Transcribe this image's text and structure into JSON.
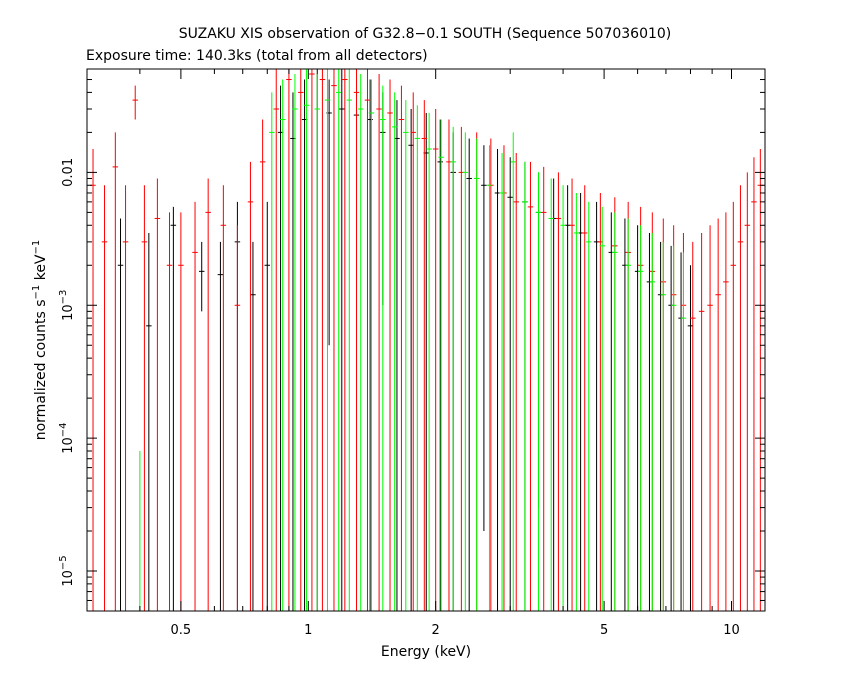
{
  "chart_data": {
    "type": "scatter",
    "title": "SUZAKU XIS observation of G32.8−0.1 SOUTH (Sequence 507036010)",
    "subtitle": "Exposure time: 140.3ks (total from all detectors)",
    "xlabel": "Energy (keV)",
    "ylabel": "normalized counts s",
    "ylabel_sup1": "−1",
    "ylabel_unit": " keV",
    "ylabel_sup2": "−1",
    "x_scale": "log",
    "y_scale": "log",
    "xlim": [
      0.3,
      12
    ],
    "ylim": [
      5e-06,
      0.06
    ],
    "x_ticks": [
      {
        "value": 0.5,
        "label": "0.5"
      },
      {
        "value": 1,
        "label": "1"
      },
      {
        "value": 2,
        "label": "2"
      },
      {
        "value": 5,
        "label": "5"
      },
      {
        "value": 10,
        "label": "10"
      }
    ],
    "y_ticks": [
      {
        "value": 1e-05,
        "label": "10",
        "exp": "−5"
      },
      {
        "value": 0.0001,
        "label": "10",
        "exp": "−4"
      },
      {
        "value": 0.001,
        "label": "10",
        "exp": "−3"
      },
      {
        "value": 0.01,
        "label": "0.01",
        "exp": ""
      }
    ],
    "grid": false,
    "series": [
      {
        "color": "#000000",
        "x": [
          0.36,
          0.42,
          0.48,
          0.56,
          0.62,
          0.68,
          0.74,
          0.8,
          0.86,
          0.92,
          0.98,
          1.05,
          1.12,
          1.2,
          1.3,
          1.4,
          1.5,
          1.62,
          1.75,
          1.9,
          2.05,
          2.2,
          2.4,
          2.6,
          2.8,
          3.0,
          3.25,
          3.5,
          3.8,
          4.1,
          4.4,
          4.8,
          5.2,
          5.6,
          6.0,
          6.4,
          6.8,
          7.2,
          7.6,
          8.0
        ],
        "y": [
          0.002,
          0.0007,
          0.004,
          0.0018,
          0.0017,
          0.003,
          0.0012,
          0.002,
          0.02,
          0.018,
          0.025,
          0.03,
          0.028,
          0.03,
          0.027,
          0.025,
          0.02,
          0.018,
          0.016,
          0.014,
          0.012,
          0.01,
          0.009,
          0.008,
          0.007,
          0.0065,
          0.006,
          0.005,
          0.0045,
          0.004,
          0.0035,
          0.003,
          0.0025,
          0.002,
          0.0018,
          0.0015,
          0.0012,
          0.001,
          0.0008,
          0.0007
        ],
        "y_low": [
          5e-06,
          5e-06,
          5e-06,
          0.0009,
          5e-06,
          5e-06,
          5e-06,
          5e-06,
          5e-06,
          5e-06,
          5e-06,
          5e-06,
          0.0005,
          5e-06,
          5e-06,
          5e-06,
          0.001,
          5e-06,
          5e-06,
          5e-06,
          5e-06,
          5e-06,
          5e-06,
          2e-05,
          5e-06,
          5e-06,
          5e-06,
          3e-05,
          5e-06,
          5e-06,
          5e-06,
          5e-06,
          5e-06,
          5e-06,
          5e-06,
          5e-06,
          5e-06,
          5e-06,
          5e-06,
          5e-06
        ],
        "y_high": [
          0.0045,
          0.0035,
          0.0055,
          0.003,
          0.003,
          0.006,
          0.003,
          0.006,
          0.045,
          0.04,
          0.05,
          0.06,
          0.05,
          0.06,
          0.05,
          0.05,
          0.04,
          0.035,
          0.03,
          0.028,
          0.025,
          0.02,
          0.018,
          0.016,
          0.015,
          0.013,
          0.012,
          0.01,
          0.009,
          0.008,
          0.007,
          0.006,
          0.005,
          0.0045,
          0.004,
          0.0035,
          0.003,
          0.0028,
          0.0025,
          0.002
        ]
      },
      {
        "color": "#ff0000",
        "x": [
          0.31,
          0.33,
          0.35,
          0.37,
          0.39,
          0.41,
          0.44,
          0.47,
          0.5,
          0.54,
          0.58,
          0.63,
          0.68,
          0.73,
          0.78,
          0.84,
          0.9,
          0.96,
          1.02,
          1.08,
          1.15,
          1.22,
          1.3,
          1.38,
          1.47,
          1.56,
          1.66,
          1.77,
          1.88,
          2.0,
          2.15,
          2.3,
          2.5,
          2.7,
          2.9,
          3.1,
          3.35,
          3.6,
          3.9,
          4.2,
          4.5,
          4.9,
          5.3,
          5.7,
          6.1,
          6.5,
          6.9,
          7.3,
          7.7,
          8.1,
          8.5,
          8.9,
          9.3,
          9.7,
          10.1,
          10.5,
          10.9,
          11.3,
          11.7
        ],
        "y": [
          0.008,
          0.003,
          0.011,
          0.003,
          0.035,
          0.003,
          0.0045,
          0.002,
          0.002,
          0.0025,
          0.005,
          0.004,
          0.001,
          0.006,
          0.012,
          0.03,
          0.05,
          0.04,
          0.055,
          0.05,
          0.045,
          0.05,
          0.04,
          0.035,
          0.03,
          0.028,
          0.025,
          0.02,
          0.018,
          0.015,
          0.012,
          0.01,
          0.009,
          0.008,
          0.007,
          0.006,
          0.0055,
          0.005,
          0.0045,
          0.004,
          0.0035,
          0.003,
          0.0028,
          0.0025,
          0.002,
          0.0018,
          0.0015,
          0.0012,
          0.001,
          0.0008,
          0.0009,
          0.001,
          0.0012,
          0.0015,
          0.002,
          0.003,
          0.004,
          0.006,
          0.008
        ],
        "y_low": [
          5e-06,
          5e-06,
          5e-06,
          5e-06,
          0.025,
          5e-06,
          5e-06,
          5e-06,
          5e-06,
          5e-06,
          5e-06,
          5e-06,
          5e-06,
          5e-06,
          5e-06,
          5e-06,
          5e-06,
          5e-06,
          5e-06,
          5e-06,
          5e-06,
          5e-06,
          5e-06,
          5e-06,
          5e-06,
          5e-06,
          5e-06,
          5e-06,
          5e-06,
          5e-06,
          5e-06,
          5e-06,
          5e-06,
          5e-06,
          5e-06,
          5e-06,
          5e-06,
          5e-06,
          5e-06,
          5e-06,
          5e-06,
          5e-06,
          5e-06,
          5e-06,
          5e-06,
          5e-06,
          5e-06,
          5e-06,
          5e-06,
          5e-06,
          5e-06,
          5e-06,
          5e-06,
          5e-06,
          5e-06,
          5e-06,
          5e-06,
          5e-06,
          5e-06
        ],
        "y_high": [
          0.015,
          0.008,
          0.02,
          0.008,
          0.045,
          0.008,
          0.009,
          0.005,
          0.005,
          0.006,
          0.009,
          0.008,
          0.004,
          0.012,
          0.025,
          0.06,
          0.06,
          0.06,
          0.06,
          0.06,
          0.06,
          0.06,
          0.06,
          0.06,
          0.055,
          0.05,
          0.045,
          0.04,
          0.035,
          0.03,
          0.025,
          0.022,
          0.02,
          0.018,
          0.016,
          0.014,
          0.012,
          0.011,
          0.01,
          0.009,
          0.008,
          0.007,
          0.0065,
          0.006,
          0.0055,
          0.005,
          0.0045,
          0.004,
          0.0035,
          0.003,
          0.0035,
          0.004,
          0.0045,
          0.005,
          0.006,
          0.008,
          0.01,
          0.013,
          0.015
        ]
      },
      {
        "color": "#00ff00",
        "x": [
          0.4,
          0.82,
          0.87,
          0.93,
          0.99,
          1.05,
          1.11,
          1.18,
          1.25,
          1.33,
          1.41,
          1.5,
          1.6,
          1.7,
          1.81,
          1.93,
          2.06,
          2.2,
          2.35,
          2.5,
          2.68,
          2.87,
          3.05,
          3.25,
          3.5,
          3.75,
          4.0,
          4.3,
          4.6,
          4.95,
          5.3,
          5.7,
          6.1,
          6.5,
          6.9,
          7.3,
          7.7
        ],
        "y": [
          5e-06,
          0.02,
          0.025,
          0.03,
          0.032,
          0.03,
          0.035,
          0.04,
          0.035,
          0.03,
          0.028,
          0.025,
          0.022,
          0.02,
          0.018,
          0.015,
          0.013,
          0.012,
          0.01,
          0.009,
          0.008,
          0.007,
          0.012,
          0.006,
          0.005,
          0.0045,
          0.004,
          0.0035,
          0.003,
          0.0028,
          0.0025,
          0.002,
          0.0018,
          0.0015,
          0.0012,
          0.001,
          0.0008
        ],
        "y_low": [
          5e-06,
          5e-06,
          5e-06,
          5e-06,
          5e-06,
          5e-06,
          5e-06,
          5e-06,
          5e-06,
          5e-06,
          5e-06,
          5e-06,
          5e-06,
          5e-06,
          5e-06,
          5e-06,
          5e-06,
          5e-06,
          5e-06,
          5e-06,
          5e-06,
          5e-06,
          5e-06,
          5e-06,
          5e-06,
          5e-06,
          5e-06,
          5e-06,
          5e-06,
          5e-06,
          5e-06,
          5e-06,
          5e-06,
          5e-06,
          5e-06,
          5e-06,
          5e-06
        ],
        "y_high": [
          8e-05,
          0.04,
          0.05,
          0.055,
          0.06,
          0.055,
          0.06,
          0.06,
          0.06,
          0.055,
          0.05,
          0.045,
          0.04,
          0.035,
          0.032,
          0.028,
          0.025,
          0.022,
          0.02,
          0.018,
          0.016,
          0.014,
          0.02,
          0.012,
          0.01,
          0.009,
          0.008,
          0.007,
          0.006,
          0.0055,
          0.005,
          0.0045,
          0.004,
          0.0035,
          0.003,
          0.0028,
          0.0025
        ]
      }
    ]
  }
}
